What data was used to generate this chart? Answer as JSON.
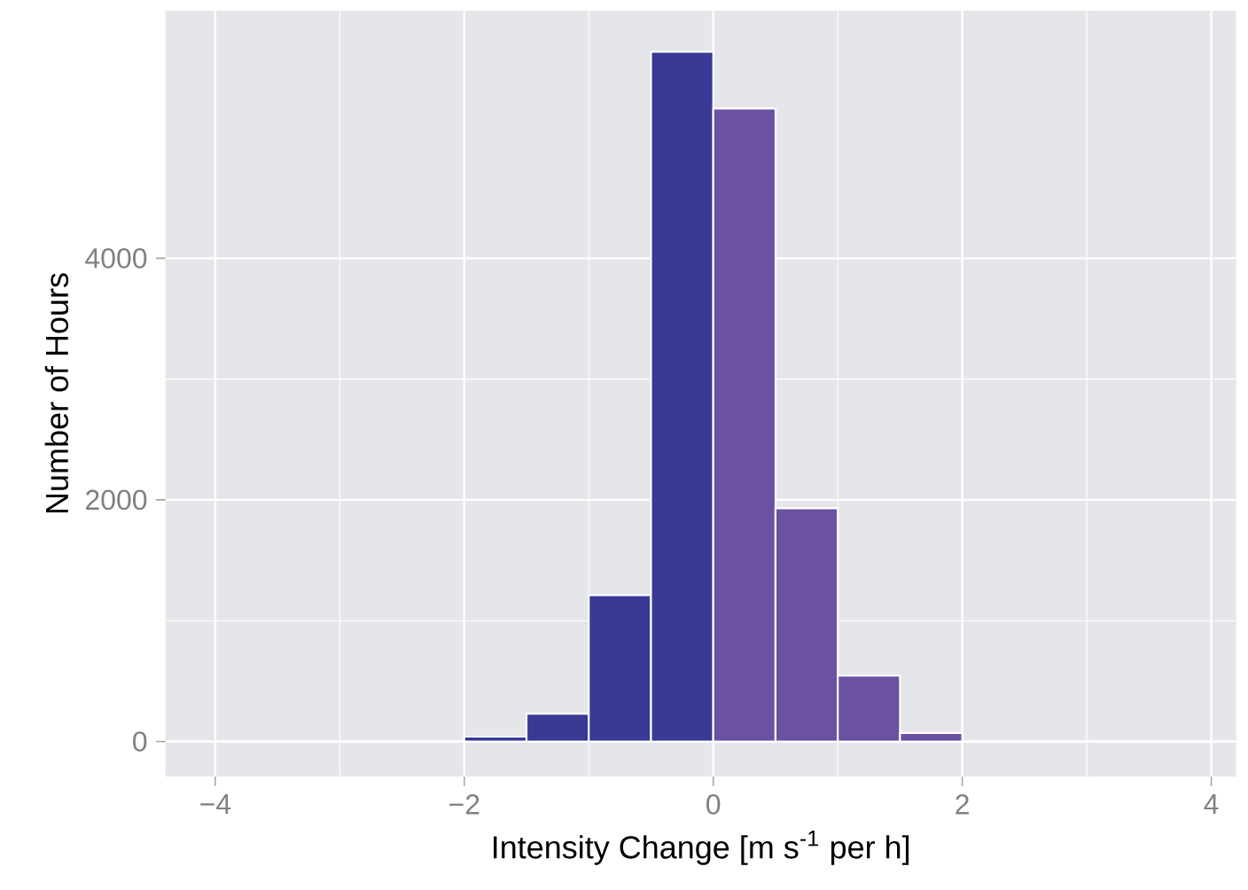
{
  "chart_data": {
    "type": "histogram",
    "xlabel": "Intensity Change [m s$^{-1}$ per h]",
    "ylabel": "Number of Hours",
    "bins": [
      -4,
      -3.5,
      -3,
      -2.5,
      -2,
      -1.5,
      -1,
      -0.5,
      0,
      0.5,
      1,
      1.5,
      2,
      2.5,
      3,
      3.5,
      4
    ],
    "values": [
      0,
      0,
      0,
      0,
      40,
      230,
      1210,
      5710,
      5240,
      1930,
      545,
      70,
      0,
      0,
      0,
      0
    ],
    "colors": [
      "#383a96",
      "#383a96",
      "#383a96",
      "#383a96",
      "#383a96",
      "#383a96",
      "#383a96",
      "#383a96",
      "#6b51a1",
      "#6b51a1",
      "#6b51a1",
      "#6b51a1",
      "#6b51a1",
      "#6b51a1",
      "#6b51a1",
      "#6b51a1"
    ],
    "xlim": [
      -4.4,
      4.2
    ],
    "ylim": [
      -290,
      6050
    ],
    "xticks": [
      {
        "value": -4,
        "label": "−4"
      },
      {
        "value": -2,
        "label": "−2"
      },
      0,
      2,
      4
    ],
    "yticks": [
      0,
      2000,
      4000
    ],
    "grid": true
  }
}
